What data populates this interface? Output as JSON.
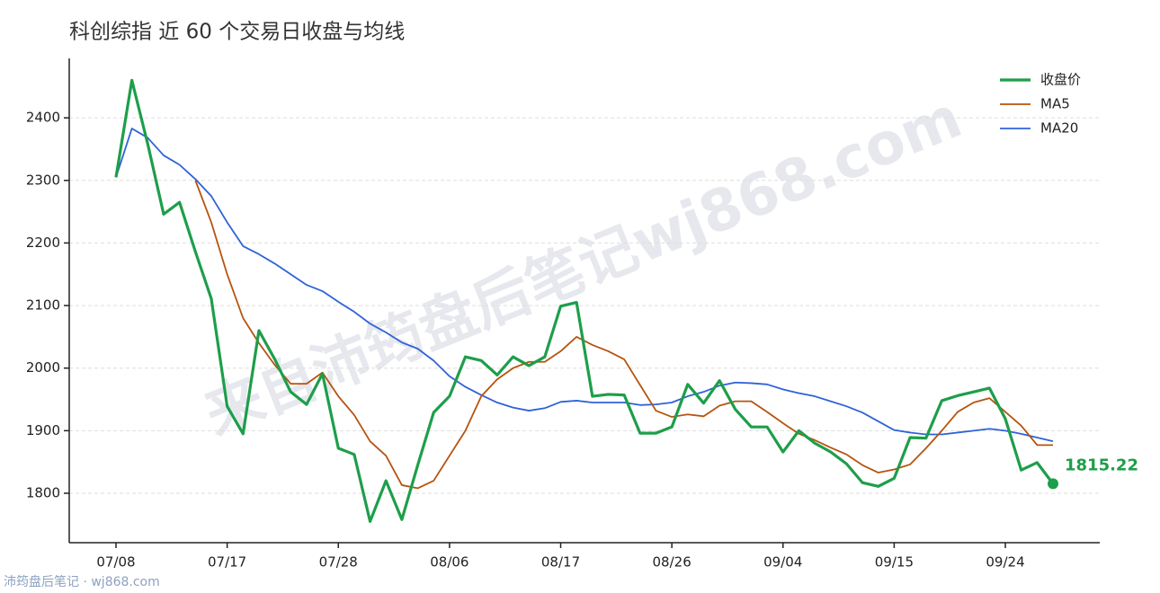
{
  "chart_data": {
    "type": "line",
    "title": "科创综指 近 60 个交易日收盘与均线",
    "watermark": "来自沛筠盘后笔记wj868.com",
    "footer": "沛筠盘后笔记 · wj868.com",
    "categories": [
      "07/08",
      null,
      null,
      null,
      null,
      null,
      null,
      "07/17",
      null,
      null,
      null,
      null,
      null,
      null,
      "07/28",
      null,
      null,
      null,
      null,
      null,
      null,
      "08/06",
      null,
      null,
      null,
      null,
      null,
      null,
      "08/17",
      null,
      null,
      null,
      null,
      null,
      null,
      "08/26",
      null,
      null,
      null,
      null,
      null,
      null,
      "09/04",
      null,
      null,
      null,
      null,
      null,
      null,
      "09/15",
      null,
      null,
      null,
      null,
      null,
      null,
      "09/24",
      null,
      null,
      null
    ],
    "series": [
      {
        "name": "收盘价",
        "color": "#1e9e4a",
        "width": 3.2,
        "values": [
          2305,
          2460,
          2358,
          2246,
          2265,
          2186,
          2111,
          1939,
          1895,
          2060,
          2014,
          1962,
          1942,
          1991,
          1872,
          1862,
          1755,
          1820,
          1758,
          1845,
          1929,
          1955,
          2018,
          2012,
          1989,
          2018,
          2004,
          2018,
          2099,
          2105,
          1955,
          1958,
          1957,
          1896,
          1896,
          1906,
          1974,
          1944,
          1980,
          1934,
          1906,
          1906,
          1866,
          1900,
          1880,
          1866,
          1847,
          1817,
          1811,
          1824,
          1889,
          1888,
          1948,
          1956,
          1962,
          1968,
          1919,
          1837,
          1849,
          1815.22
        ]
      },
      {
        "name": "MA5",
        "color": "#b5540f",
        "width": 1.8,
        "values": [
          null,
          null,
          null,
          null,
          null,
          2300,
          2233,
          2150,
          2080,
          2040,
          2005,
          1975,
          1975,
          1993,
          1955,
          1925,
          1883,
          1860,
          1813,
          1808,
          1820,
          1860,
          1900,
          1955,
          1982,
          2000,
          2010,
          2010,
          2027,
          2050,
          2037,
          2027,
          2014,
          1973,
          1932,
          1922,
          1926,
          1923,
          1940,
          1947,
          1947,
          1930,
          1912,
          1895,
          1885,
          1873,
          1862,
          1845,
          1833,
          1838,
          1846,
          1872,
          1900,
          1930,
          1945,
          1952,
          1930,
          1908,
          1877,
          1877
        ]
      },
      {
        "name": "MA20",
        "color": "#2f62d8",
        "width": 1.8,
        "values": [
          2305,
          2383,
          2368,
          2340,
          2325,
          2302,
          2275,
          2233,
          2195,
          2182,
          2167,
          2150,
          2133,
          2123,
          2106,
          2090,
          2071,
          2057,
          2041,
          2031,
          2012,
          1987,
          1970,
          1957,
          1945,
          1937,
          1932,
          1936,
          1946,
          1948,
          1945,
          1945,
          1945,
          1941,
          1942,
          1945,
          1955,
          1962,
          1972,
          1977,
          1976,
          1974,
          1966,
          1960,
          1955,
          1947,
          1939,
          1929,
          1915,
          1901,
          1897,
          1894,
          1894,
          1897,
          1900,
          1903,
          1900,
          1895,
          1889,
          1883
        ]
      }
    ],
    "ylim": [
      1721,
      2495
    ],
    "yticks": [
      1800,
      1900,
      2000,
      2100,
      2200,
      2300,
      2400
    ],
    "grid": true,
    "legend": "top-right"
  }
}
